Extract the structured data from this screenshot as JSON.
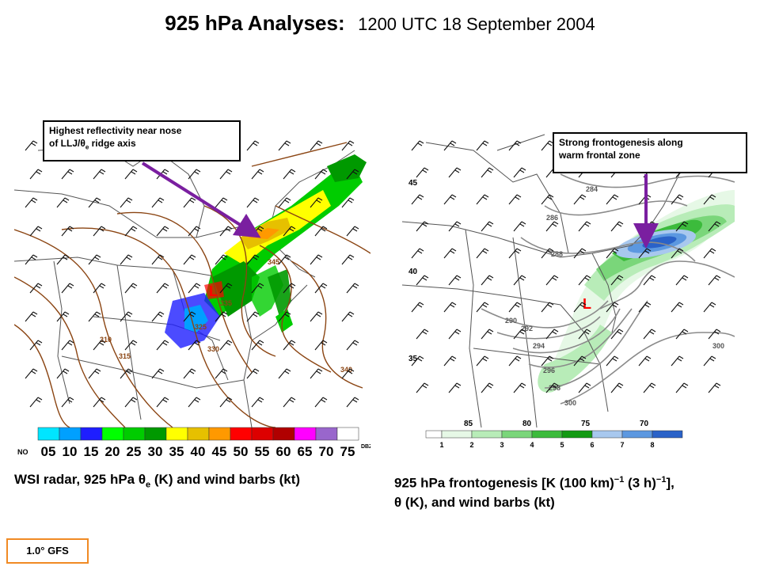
{
  "title": {
    "main": "925 hPa Analyses:",
    "sub": "1200 UTC 18 September 2004"
  },
  "left_panel": {
    "callout_line1": "Highest reflectivity near nose",
    "callout_line2_pre": "of LLJ/θ",
    "callout_line2_sub": "e",
    "callout_line2_post": " ridge axis",
    "contour_labels": [
      "345",
      "335",
      "325",
      "330",
      "310",
      "315",
      "340"
    ],
    "colorbar": {
      "colors": [
        "#00e5ff",
        "#00a0ff",
        "#1e1eff",
        "#00ff00",
        "#00cc00",
        "#009900",
        "#ffff00",
        "#e6c000",
        "#ff9900",
        "#ff0000",
        "#dd0000",
        "#b00000",
        "#ff00ff",
        "#9966cc",
        "#ffffff"
      ],
      "no_label": "NO",
      "labels": [
        "05",
        "10",
        "15",
        "20",
        "25",
        "30",
        "35",
        "40",
        "45",
        "50",
        "55",
        "60",
        "65",
        "70",
        "75"
      ],
      "unit": "DBZ"
    },
    "caption_pre": "WSI radar, 925 hPa θ",
    "caption_sub": "e",
    "caption_post": " (K) and wind barbs (kt)"
  },
  "right_panel": {
    "callout_line1": "Strong frontogenesis along",
    "callout_line2": "warm frontal zone",
    "lat_labels": [
      "45",
      "40",
      "35"
    ],
    "lon_labels": [
      "85",
      "80",
      "75",
      "70"
    ],
    "contour_labels": [
      "284",
      "286",
      "288",
      "290",
      "292",
      "294",
      "296",
      "298",
      "300",
      "300"
    ],
    "colorbar": {
      "colors": [
        "#e6f8e6",
        "#b8ecb8",
        "#7ad67a",
        "#3cbb3c",
        "#139a13",
        "#a8c8ee",
        "#5c98e0",
        "#2a62c8"
      ],
      "labels": [
        "1",
        "2",
        "3",
        "4",
        "5",
        "6",
        "7",
        "8"
      ]
    },
    "caption_line1_pre": "925 hPa frontogenesis [K (100 km)",
    "caption_line1_sup1": "−1",
    "caption_line1_mid": " (3 h)",
    "caption_line1_sup2": "−1",
    "caption_line1_post": "],",
    "caption_line2": "θ (K), and wind barbs (kt)"
  },
  "model_badge": "1.0° GFS",
  "colors": {
    "arrow": "#7a1fa0",
    "badge_border": "#f08a24",
    "theta_e_contour": "#8b4513",
    "theta_contour": "#8a8a8a"
  }
}
